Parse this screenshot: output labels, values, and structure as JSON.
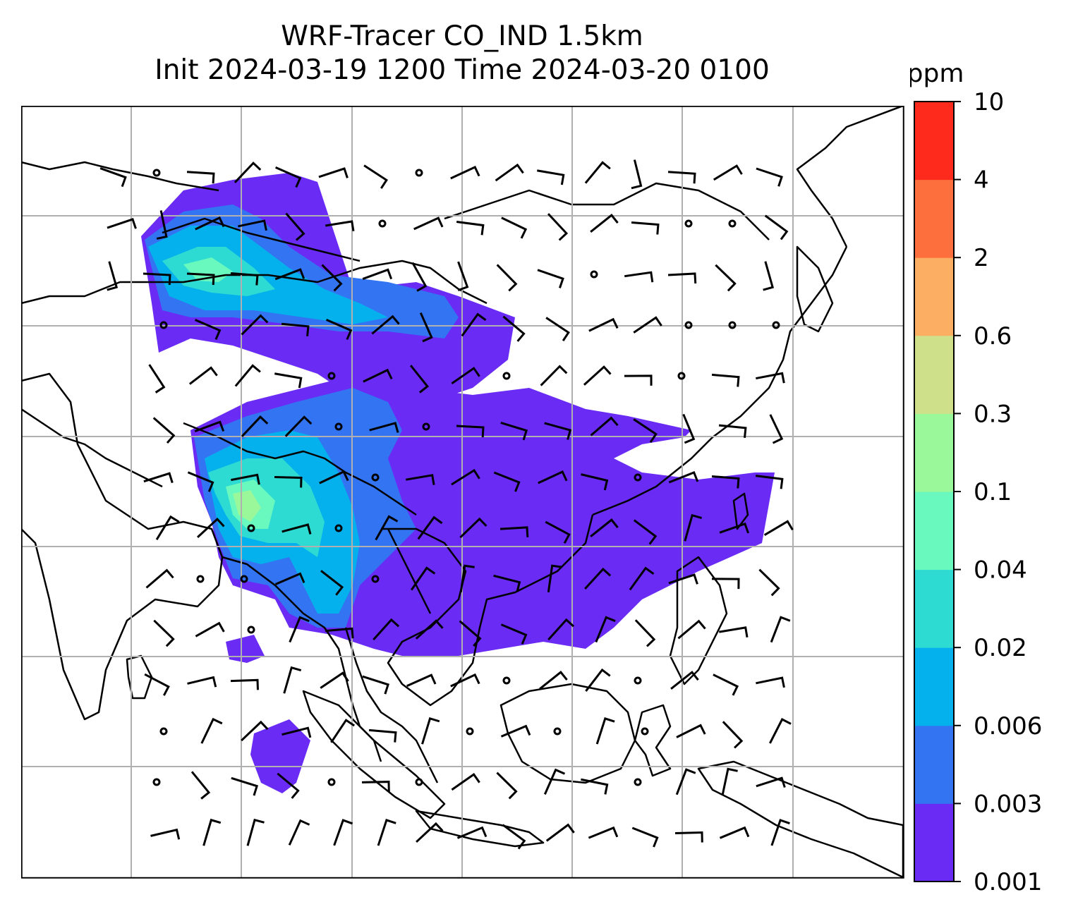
{
  "title": {
    "line1": "WRF-Tracer CO_IND 1.5km",
    "line2": "Init 2024-03-19 1200 Time 2024-03-20 0100"
  },
  "colorbar": {
    "unit": "ppm",
    "levels": [
      "0.001",
      "0.003",
      "0.006",
      "0.02",
      "0.04",
      "0.1",
      "0.3",
      "0.6",
      "2",
      "4",
      "10"
    ],
    "colors": [
      "#6a2bf5",
      "#3374f2",
      "#05b1ec",
      "#2edbd3",
      "#69f9bf",
      "#9af79a",
      "#cfe08a",
      "#fcae62",
      "#fd6f3c",
      "#fe2a1b"
    ]
  },
  "map": {
    "gridlines": true,
    "ocean_color": "#ffffff",
    "coastline_color": "#000000",
    "field": "CO_IND tracer concentration at 1.5km with wind barbs",
    "wind_barbs": true
  }
}
